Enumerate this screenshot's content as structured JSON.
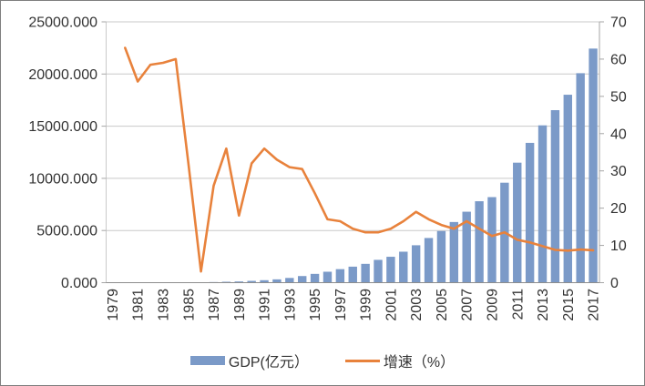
{
  "page": {
    "background": "#ffffff",
    "border_color": "#7f7f7f"
  },
  "style": {
    "bar_color": "#7b9ac8",
    "line_color": "#e8823c",
    "gridline_color": "#c9c9c9",
    "axis_line_color": "#a6a6a6",
    "baseline_color": "#8c8c8c",
    "text_color": "#333333"
  },
  "legend": {
    "items": [
      {
        "label": "GDP(亿元）",
        "type": "bar"
      },
      {
        "label": "增速（%）",
        "type": "line"
      }
    ]
  },
  "chart_data": {
    "type": "combo-bar-line",
    "title": "",
    "xlabel": "",
    "ylabel_left": "",
    "ylabel_right": "",
    "grid": "horizontal",
    "legend_position": "bottom",
    "categories": [
      "1979",
      "1980",
      "1981",
      "1982",
      "1983",
      "1984",
      "1985",
      "1986",
      "1987",
      "1988",
      "1989",
      "1990",
      "1991",
      "1992",
      "1993",
      "1994",
      "1995",
      "1996",
      "1997",
      "1998",
      "1999",
      "2000",
      "2001",
      "2002",
      "2003",
      "2004",
      "2005",
      "2006",
      "2007",
      "2008",
      "2009",
      "2010",
      "2011",
      "2012",
      "2013",
      "2014",
      "2015",
      "2016",
      "2017"
    ],
    "x_tick_labels": [
      "1979",
      "1981",
      "1983",
      "1985",
      "1987",
      "1989",
      "1991",
      "1993",
      "1995",
      "1997",
      "1999",
      "2001",
      "2003",
      "2005",
      "2007",
      "2009",
      "2011",
      "2013",
      "2015",
      "2017"
    ],
    "series": [
      {
        "name": "GDP(亿元）",
        "type": "bar",
        "axis": "left",
        "values": [
          1.96,
          2.7,
          4.95,
          8.26,
          13.12,
          23.42,
          39.02,
          41.65,
          55.9,
          87.0,
          115.66,
          171.67,
          236.66,
          317.32,
          453.14,
          634.67,
          842.79,
          1048.39,
          1297.42,
          1534.93,
          1804.02,
          2187.45,
          2482.49,
          2969.52,
          3585.72,
          4282.14,
          4950.91,
          5813.56,
          6801.57,
          7806.54,
          8201.23,
          9581.51,
          11502.06,
          13400,
          15080,
          16536,
          18014,
          20079,
          22438
        ]
      },
      {
        "name": "增速（%）",
        "type": "line",
        "axis": "right",
        "values": [
          null,
          63,
          54,
          58.5,
          59,
          60,
          32,
          3,
          26,
          36,
          18,
          32,
          36,
          33,
          31,
          30.5,
          24,
          17,
          16.5,
          14.5,
          13.5,
          13.5,
          14.5,
          16.5,
          19,
          17,
          15.5,
          14.5,
          16.5,
          14.5,
          12.5,
          13.5,
          11.5,
          10.8,
          9.8,
          8.8,
          8.6,
          8.9,
          8.7
        ]
      }
    ],
    "left_axis": {
      "min": 0,
      "max": 25000,
      "tick_step": 5000,
      "tick_labels": [
        "0.000",
        "5000.000",
        "10000.000",
        "15000.000",
        "20000.000",
        "25000.000"
      ]
    },
    "right_axis": {
      "min": 0,
      "max": 70,
      "tick_step": 10,
      "tick_labels": [
        "0",
        "10",
        "20",
        "30",
        "40",
        "50",
        "60",
        "70"
      ]
    }
  }
}
